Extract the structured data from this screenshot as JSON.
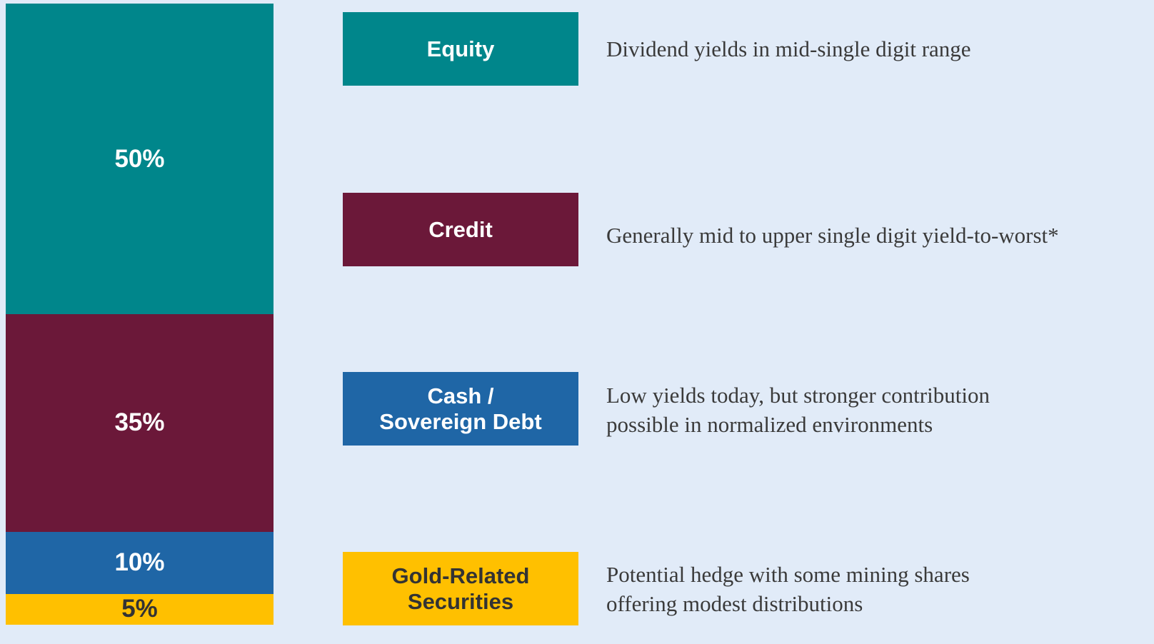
{
  "chart_data": {
    "type": "bar",
    "stacked": true,
    "ylim": [
      0,
      100
    ],
    "series": [
      {
        "name": "Equity",
        "color": "#00868b",
        "label_color": "#ffffff",
        "values": [
          50
        ],
        "value_labels": [
          "50%"
        ],
        "description": [
          "Dividend yields in mid-single digit range"
        ]
      },
      {
        "name": "Credit",
        "color": "#6b1839",
        "label_color": "#ffffff",
        "values": [
          35
        ],
        "value_labels": [
          "35%"
        ],
        "description": [
          "Generally mid to upper single digit yield-to-worst*"
        ]
      },
      {
        "name": "Cash / Sovereign Debt",
        "color": "#1f66a6",
        "label_color": "#ffffff",
        "values": [
          10
        ],
        "value_labels": [
          "10%"
        ],
        "description": [
          "Low yields today, but stronger contribution",
          "possible in normalized environments"
        ]
      },
      {
        "name": "Gold-Related Securities",
        "color": "#ffc000",
        "label_color": "#333333",
        "values": [
          5
        ],
        "value_labels": [
          "5%"
        ],
        "description": [
          "Potential hedge with some mining shares",
          "offering modest distributions"
        ]
      }
    ]
  }
}
